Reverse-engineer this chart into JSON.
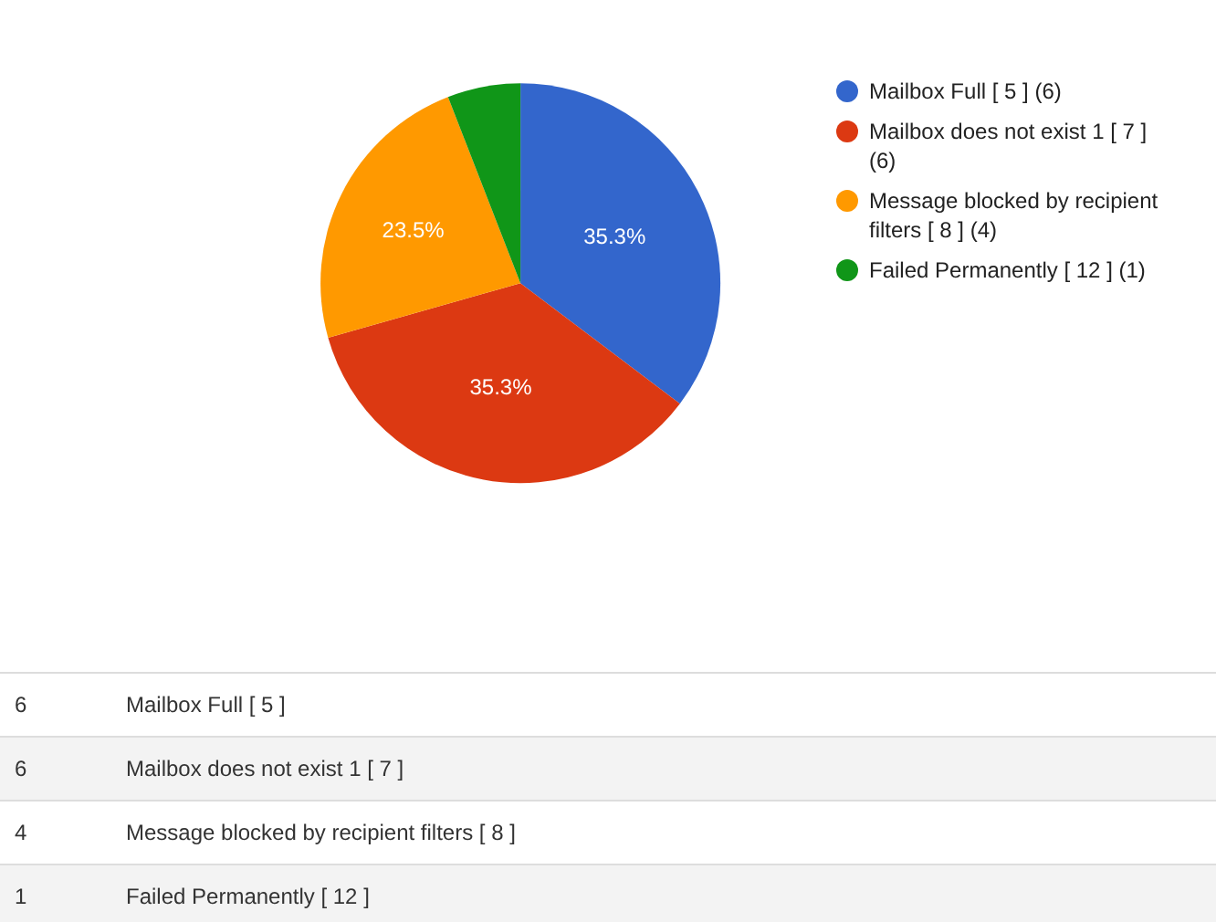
{
  "chart_data": {
    "type": "pie",
    "categories": [
      "Mailbox Full [ 5 ] (6)",
      "Mailbox does not exist 1 [ 7 ] (6)",
      "Message blocked by recipient filters [ 8 ] (4)",
      "Failed Permanently [ 12 ] (1)"
    ],
    "values": [
      35.3,
      35.3,
      23.5,
      5.9
    ],
    "colors": [
      "#3366cc",
      "#dc3912",
      "#ff9900",
      "#109618"
    ],
    "value_labels": [
      "35.3%",
      "35.3%",
      "23.5%",
      null
    ],
    "legend": "right",
    "annotations": [
      "6",
      "Mailbox Full [ 5 ]",
      "6",
      "Mailbox does not exist 1 [ 7 ]",
      "4",
      "Message blocked by recipient filters [ 8 ]",
      "1",
      "Failed Permanently [ 12 ]"
    ]
  }
}
